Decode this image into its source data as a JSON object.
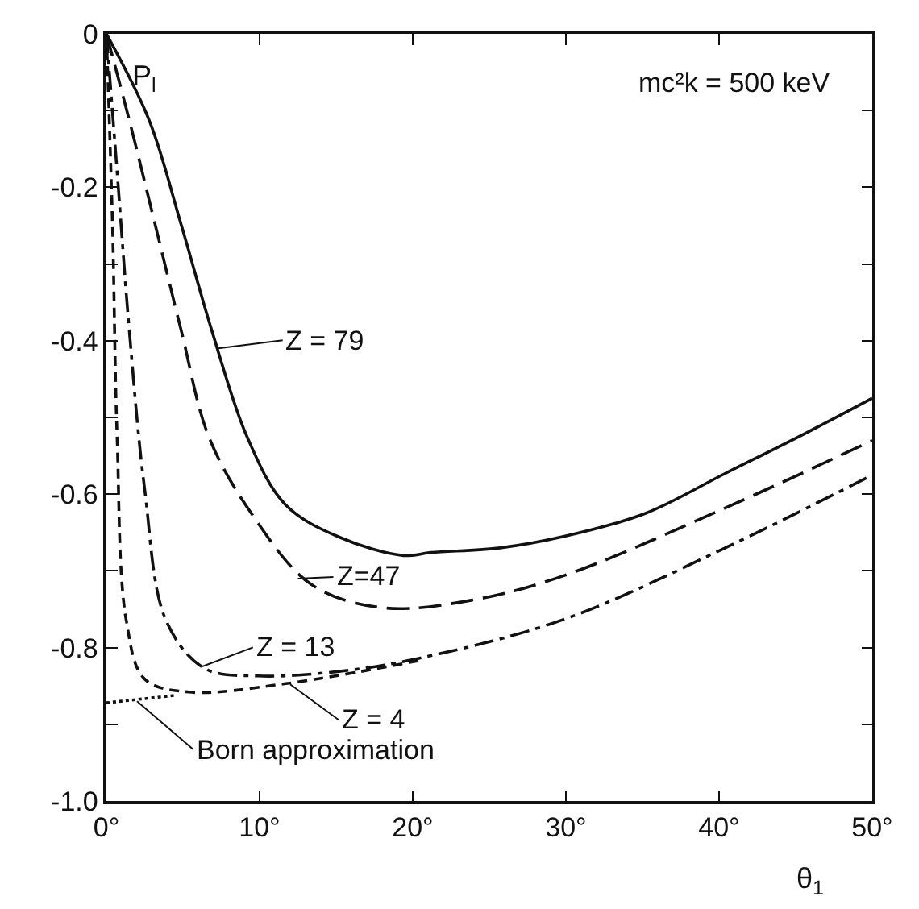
{
  "chart_data": {
    "type": "line",
    "xlabel": "θ$_{1}$",
    "ylabel": "P$_{l}$",
    "x": [
      0,
      2.8,
      4.9,
      6.9,
      9.2,
      11.7,
      15.2,
      19.4,
      21.2,
      25.7,
      29.9,
      35.2,
      40.4,
      45.7,
      50
    ],
    "series": [
      {
        "color": "#111111",
        "line_style": "solid",
        "values": [
          0,
          -0.113,
          -0.25,
          -0.388,
          -0.526,
          -0.614,
          -0.656,
          -0.68,
          -0.676,
          -0.67,
          -0.655,
          -0.625,
          -0.573,
          -0.52,
          -0.475
        ]
      },
      {
        "color": "#111111",
        "line_style": "dashed",
        "x": [
          0,
          1.5,
          3.2,
          4.9,
          6.7,
          9.6,
          13.4,
          18,
          23.9,
          29.9,
          40.4,
          50
        ],
        "values": [
          0,
          -0.113,
          -0.25,
          -0.388,
          -0.526,
          -0.629,
          -0.718,
          -0.748,
          -0.738,
          -0.706,
          -0.618,
          -0.53
        ]
      },
      {
        "color": "#111111",
        "line_style": "dashdot",
        "x": [
          0,
          0.7,
          1.5,
          2.5,
          3.9,
          6.4,
          9.9,
          15.2,
          20.4,
          29.9,
          40.4,
          50
        ],
        "values": [
          0,
          -0.18,
          -0.388,
          -0.594,
          -0.765,
          -0.827,
          -0.837,
          -0.831,
          -0.814,
          -0.763,
          -0.67,
          -0.575
        ]
      },
      {
        "color": "#111111",
        "line_style": "shortdash",
        "x": [
          0,
          0.4,
          0.7,
          1.3,
          2.5,
          5.4,
          11.7,
          20.4
        ],
        "values": [
          0,
          -0.25,
          -0.526,
          -0.765,
          -0.841,
          -0.858,
          -0.847,
          -0.817
        ]
      },
      {
        "color": "#111111",
        "line_style": "dotted",
        "x": [
          0,
          4.6
        ],
        "values": [
          -0.872,
          -0.862
        ]
      }
    ],
    "annotations": [
      {
        "text": "Z = 79",
        "x": 7.3,
        "y": -0.41
      },
      {
        "text": "Z=47",
        "x": 12.5,
        "y": -0.71
      },
      {
        "text": "Z = 13",
        "x": 6.2,
        "y": -0.825
      },
      {
        "text": "Z = 4",
        "x": 12,
        "y": -0.848
      },
      {
        "text": "Born approximation",
        "x": 2,
        "y": -0.87
      },
      "mc²k = 500 keV"
    ],
    "xlim": [
      0,
      50
    ],
    "ylim": [
      -1.0,
      0
    ],
    "xticks": [
      {
        "value": 0,
        "label": "0°"
      },
      {
        "value": 10,
        "label": "10°"
      },
      {
        "value": 20,
        "label": "20°"
      },
      {
        "value": 30,
        "label": "30°"
      },
      {
        "value": 40,
        "label": "40°"
      },
      {
        "value": 50,
        "label": "50°"
      }
    ],
    "yticks": [
      0,
      {
        "value": -0.1,
        "label": null
      },
      -0.2,
      {
        "value": -0.3,
        "label": null
      },
      -0.4,
      {
        "value": -0.5,
        "label": null
      },
      -0.6,
      {
        "value": -0.7,
        "label": null
      },
      -0.8,
      {
        "value": -0.9,
        "label": null
      },
      {
        "value": -1.0,
        "label": "-1.0"
      }
    ],
    "marker": "none"
  }
}
